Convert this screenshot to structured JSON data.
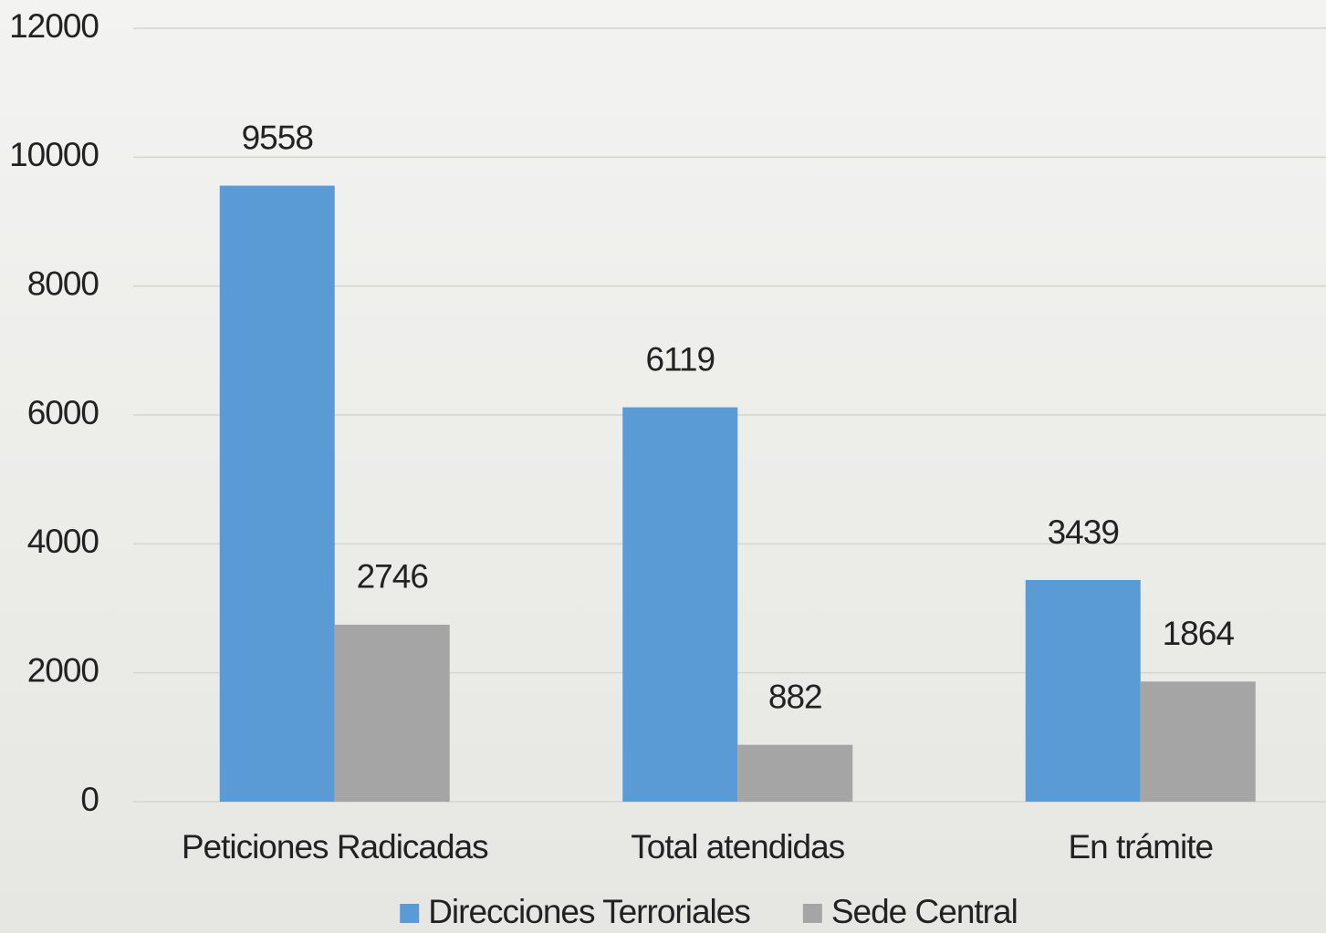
{
  "chart_data": {
    "type": "bar",
    "categories": [
      "Peticiones Radicadas",
      "Total atendidas",
      "En trámite"
    ],
    "series": [
      {
        "name": "Direcciones Terroriales",
        "color": "#5b9bd5",
        "values": [
          9558,
          6119,
          3439
        ]
      },
      {
        "name": "Sede Central",
        "color": "#a5a5a5",
        "values": [
          2746,
          882,
          1864
        ]
      }
    ],
    "ylim": [
      0,
      12000
    ],
    "yticks": [
      0,
      2000,
      4000,
      6000,
      8000,
      10000,
      12000
    ],
    "grid": true,
    "legend": "bottom"
  }
}
